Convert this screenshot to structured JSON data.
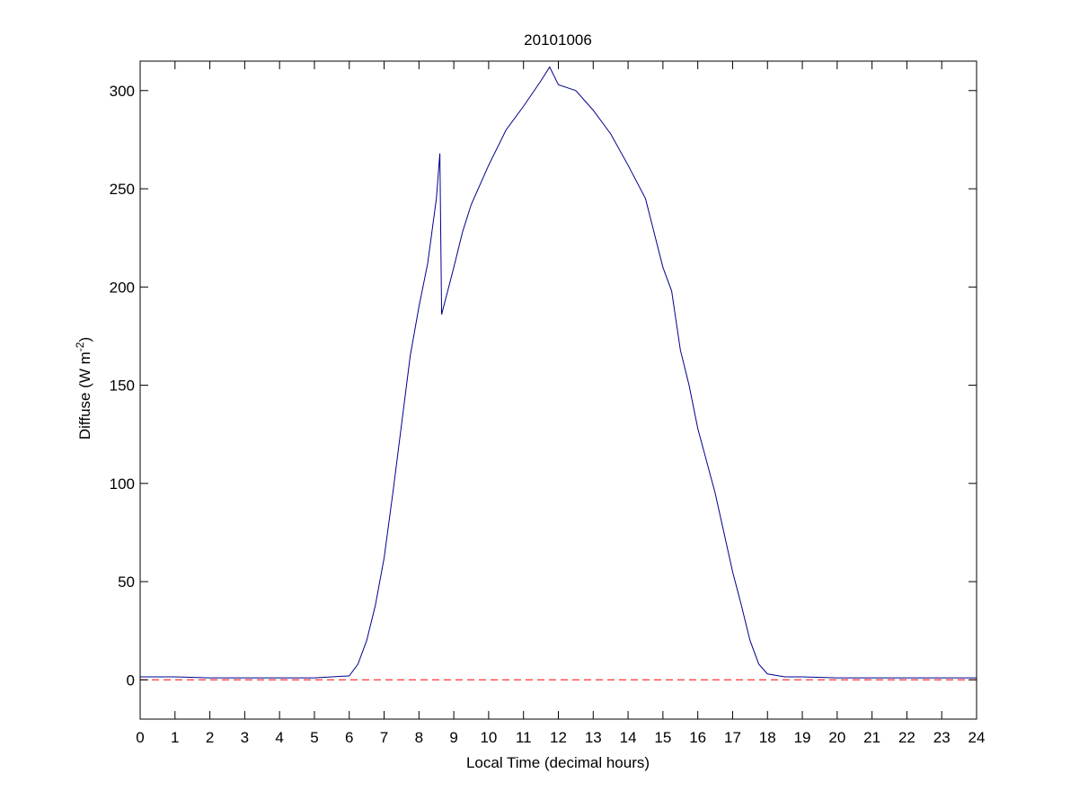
{
  "chart_data": {
    "type": "line",
    "title": "20101006",
    "xlabel": "Local Time (decimal hours)",
    "ylabel": {
      "text": "Diffuse (W m",
      "superscript": "-2",
      "suffix": ")"
    },
    "x": [
      0,
      0.5,
      1,
      2,
      3,
      4,
      5,
      5.5,
      6,
      6.25,
      6.5,
      6.75,
      7,
      7.25,
      7.5,
      7.75,
      8,
      8.25,
      8.5,
      8.6,
      8.65,
      9,
      9.25,
      9.5,
      10,
      10.5,
      11,
      11.5,
      11.75,
      12,
      12.5,
      13,
      13.5,
      14,
      14.5,
      15,
      15.25,
      15.5,
      15.75,
      16,
      16.5,
      16.75,
      17,
      17.25,
      17.5,
      17.75,
      18,
      18.5,
      19,
      20,
      21,
      22,
      23,
      24
    ],
    "series": [
      {
        "color": "#00008b",
        "values": [
          1.5,
          1.5,
          1.5,
          1,
          1,
          1,
          1,
          1.5,
          2,
          8,
          20,
          38,
          62,
          95,
          130,
          165,
          190,
          212,
          245,
          268,
          186,
          210,
          228,
          242,
          262,
          280,
          292,
          305,
          312,
          303,
          300,
          290,
          278,
          262,
          245,
          210,
          198,
          168,
          150,
          128,
          95,
          75,
          55,
          38,
          20,
          8,
          3,
          1.5,
          1.5,
          1,
          1,
          1,
          1,
          1
        ]
      }
    ],
    "reference_line": {
      "value": 0,
      "color": "#ff0000"
    },
    "xlim": [
      0,
      24
    ],
    "xticks": [
      0,
      1,
      2,
      3,
      4,
      5,
      6,
      7,
      8,
      9,
      10,
      11,
      12,
      13,
      14,
      15,
      16,
      17,
      18,
      19,
      20,
      21,
      22,
      23,
      24
    ],
    "ylim": [
      -20,
      315
    ],
    "yticks": [
      0,
      50,
      100,
      150,
      200,
      250,
      300
    ]
  }
}
